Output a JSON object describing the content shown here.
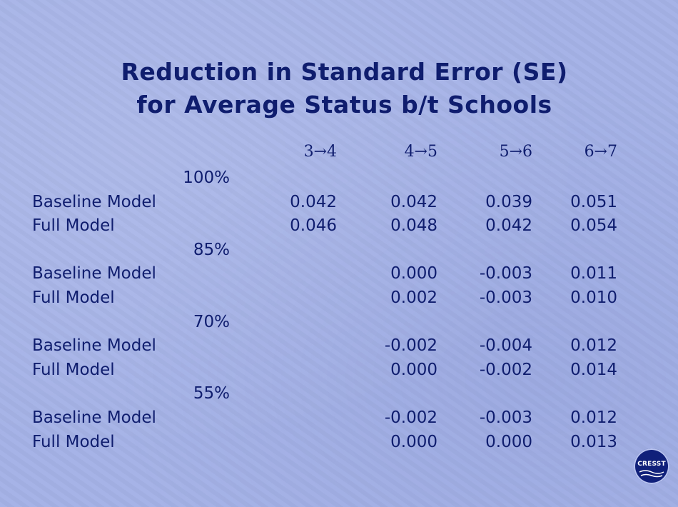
{
  "title": {
    "line1": "Reduction in Standard Error (SE)",
    "line2": "for Average Status b/t Schools"
  },
  "columns": [
    "3→4",
    "4→5",
    "5→6",
    "6→7"
  ],
  "groups": [
    {
      "label": "100%",
      "rows": [
        {
          "label": "Baseline Model",
          "values": [
            "0.042",
            "0.042",
            "0.039",
            "0.051"
          ]
        },
        {
          "label": "Full Model",
          "values": [
            "0.046",
            "0.048",
            "0.042",
            "0.054"
          ]
        }
      ]
    },
    {
      "label": "85%",
      "rows": [
        {
          "label": "Baseline Model",
          "values": [
            "",
            "0.000",
            "-0.003",
            "0.011"
          ]
        },
        {
          "label": "Full Model",
          "values": [
            "",
            "0.002",
            "-0.003",
            "0.010"
          ]
        }
      ]
    },
    {
      "label": "70%",
      "rows": [
        {
          "label": "Baseline Model",
          "values": [
            "",
            "-0.002",
            "-0.004",
            "0.012"
          ]
        },
        {
          "label": "Full Model",
          "values": [
            "",
            "0.000",
            "-0.002",
            "0.014"
          ]
        }
      ]
    },
    {
      "label": "55%",
      "rows": [
        {
          "label": "Baseline Model",
          "values": [
            "",
            "-0.002",
            "-0.003",
            "0.012"
          ]
        },
        {
          "label": "Full Model",
          "values": [
            "",
            "0.000",
            "0.000",
            "0.013"
          ]
        }
      ]
    }
  ],
  "logo": {
    "text": "CRESST",
    "color": "#10207a"
  },
  "colors": {
    "background": "#a4b1e6",
    "text": "#0f1d6e"
  }
}
